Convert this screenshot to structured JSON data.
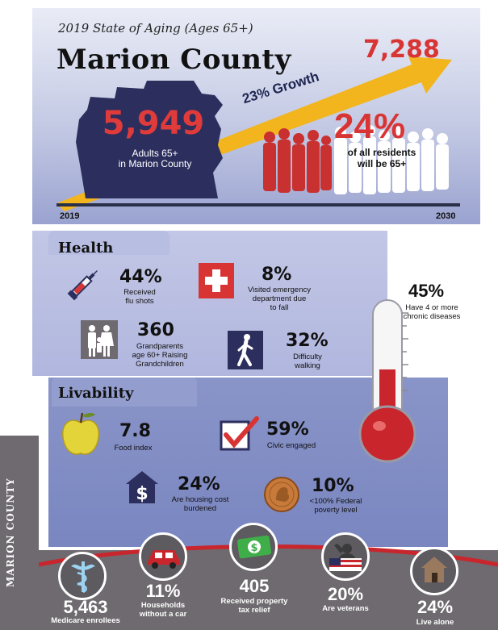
{
  "header": {
    "subtitle": "2019 State of Aging (Ages 65+)",
    "title": "Marion County",
    "adults_number": "5,949",
    "adults_label_1": "Adults 65+",
    "adults_label_2": "in Marion County",
    "projected_number": "7,288",
    "growth_label": "23% Growth",
    "residents_pct": "24%",
    "residents_label_1": "of all residents",
    "residents_label_2": "will be 65+",
    "year_start": "2019",
    "year_end": "2030"
  },
  "side_tab": {
    "label": "MARION COUNTY"
  },
  "health": {
    "title": "Health",
    "flu": {
      "value": "44%",
      "label_1": "Received",
      "label_2": "flu shots",
      "icon": "syringe-icon"
    },
    "emergency": {
      "value": "8%",
      "label_1": "Visited emergency",
      "label_2": "department due",
      "label_3": "to fall",
      "icon": "medical-cross-icon"
    },
    "chronic": {
      "value": "45%",
      "label_1": "Have 4 or more",
      "label_2": "chronic diseases",
      "icon": "thermometer-icon"
    },
    "grandparents": {
      "value": "360",
      "label_1": "Grandparents",
      "label_2": "age 60+ Raising",
      "label_3": "Grandchildren",
      "icon": "family-icon"
    },
    "walking": {
      "value": "32%",
      "label_1": "Difficulty",
      "label_2": "walking",
      "icon": "walking-person-icon"
    }
  },
  "livability": {
    "title": "Livability",
    "food": {
      "value": "7.8",
      "label": "Food index",
      "icon": "apple-icon"
    },
    "civic": {
      "value": "59%",
      "label": "Civic engaged",
      "icon": "checkbox-icon"
    },
    "housing": {
      "value": "24%",
      "label_1": "Are housing cost",
      "label_2": "burdened",
      "icon": "house-dollar-icon"
    },
    "poverty": {
      "value": "10%",
      "label_1": "<100% Federal",
      "label_2": "poverty level",
      "icon": "penny-icon"
    }
  },
  "bottom": {
    "medicare": {
      "value": "5,463",
      "label": "Medicare enrollees",
      "icon": "caduceus-icon"
    },
    "car": {
      "value": "11%",
      "label_1": "Households",
      "label_2": "without a car",
      "icon": "car-icon"
    },
    "tax": {
      "value": "405",
      "label_1": "Received property",
      "label_2": "tax relief",
      "icon": "money-icon"
    },
    "veterans": {
      "value": "20%",
      "label": "Are veterans",
      "icon": "soldier-salute-icon"
    },
    "alone": {
      "value": "24%",
      "label": "Live alone",
      "icon": "house-icon"
    }
  },
  "colors": {
    "accent_red": "#d93434",
    "navy": "#2c2f5e",
    "panel": "#b8bde2",
    "grey": "#6e6a6f"
  }
}
